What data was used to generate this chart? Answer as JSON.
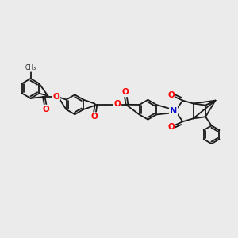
{
  "bg_color": "#ebebeb",
  "bond_color": "#1a1a1a",
  "oxygen_color": "#ff0000",
  "nitrogen_color": "#0000cd",
  "lw": 1.3,
  "figsize": [
    3.0,
    3.0
  ],
  "dpi": 100,
  "xlim": [
    0,
    14
  ],
  "ylim": [
    0,
    14
  ]
}
